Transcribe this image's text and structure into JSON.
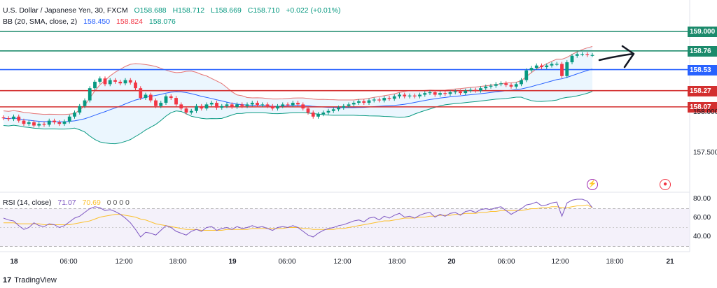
{
  "header": {
    "symbol": "U.S. Dollar / Japanese Yen, 30, FXCM",
    "open": "O158.688",
    "high": "H158.712",
    "low": "L158.669",
    "close": "C158.710",
    "change": "+0.022 (+0.01%)",
    "bb_label": "BB (20, SMA, close, 2)",
    "bb_basis": "158.450",
    "bb_upper": "158.824",
    "bb_lower": "158.076",
    "rsi_label": "RSI (14, close)",
    "rsi_value": "71.07",
    "rsi_ma": "70.69",
    "rsi_zeros": "0 0 0 0"
  },
  "colors": {
    "green_line": "#1b8a6b",
    "blue_line": "#2962ff",
    "red_line": "#d32f2f",
    "up_candle": "#089981",
    "down_candle": "#f23645",
    "bb_upper": "#e57373",
    "bb_basis": "#2962ff",
    "bb_lower": "#089981",
    "bb_fill": "#e3f2fd",
    "rsi_line": "#7e57c2",
    "rsi_ma": "#fbc02d",
    "rsi_band": "#ede7f6"
  },
  "chart_data": {
    "type": "candlestick",
    "price_axis_ticks": [
      "158.000",
      "157.500"
    ],
    "horizontal_levels": [
      {
        "label": "159.000",
        "value": 159.0,
        "color": "#1b8a6b"
      },
      {
        "label": "158.76",
        "value": 158.76,
        "color": "#1b8a6b"
      },
      {
        "label": "158.53",
        "value": 158.53,
        "color": "#2962ff"
      },
      {
        "label": "158.27",
        "value": 158.27,
        "color": "#d32f2f"
      },
      {
        "label": "158.07",
        "value": 158.07,
        "color": "#d32f2f"
      }
    ],
    "time_labels": [
      "18",
      "06:00",
      "12:00",
      "18:00",
      "19",
      "06:00",
      "12:00",
      "18:00",
      "20",
      "06:00",
      "12:00",
      "18:00",
      "21"
    ],
    "rsi_axis_ticks": [
      "80.00",
      "60.00",
      "40.00"
    ],
    "closes": [
      157.93,
      157.92,
      157.95,
      157.9,
      157.86,
      157.88,
      157.84,
      157.86,
      157.85,
      157.9,
      157.88,
      157.86,
      157.89,
      157.95,
      158.0,
      158.08,
      158.15,
      158.3,
      158.38,
      158.42,
      158.35,
      158.4,
      158.38,
      158.36,
      158.4,
      158.37,
      158.3,
      158.18,
      158.22,
      158.15,
      158.08,
      158.12,
      158.2,
      158.18,
      158.1,
      158.05,
      158.0,
      158.02,
      158.08,
      158.05,
      158.1,
      158.12,
      158.06,
      158.08,
      158.1,
      158.07,
      158.1,
      158.08,
      158.1,
      158.12,
      158.09,
      158.1,
      158.08,
      158.05,
      158.08,
      158.1,
      158.09,
      158.12,
      158.1,
      158.05,
      158.0,
      157.95,
      157.98,
      158.0,
      158.02,
      158.04,
      158.06,
      158.08,
      158.1,
      158.12,
      158.14,
      158.12,
      158.15,
      158.16,
      158.15,
      158.18,
      158.17,
      158.2,
      158.22,
      158.2,
      158.21,
      158.2,
      158.22,
      158.24,
      158.25,
      158.22,
      158.24,
      158.23,
      158.25,
      158.26,
      158.24,
      158.27,
      158.28,
      158.27,
      158.3,
      158.32,
      158.33,
      158.35,
      158.36,
      158.34,
      158.32,
      158.35,
      158.4,
      158.52,
      158.55,
      158.58,
      158.56,
      158.58,
      158.6,
      158.6,
      158.45,
      158.62,
      158.7,
      158.72,
      158.72,
      158.71,
      158.71
    ],
    "rsi": [
      60,
      58,
      57,
      52,
      48,
      50,
      55,
      52,
      51,
      54,
      53,
      50,
      52,
      56,
      60,
      62,
      66,
      70,
      72,
      71,
      68,
      69,
      67,
      64,
      60,
      55,
      48,
      40,
      45,
      44,
      42,
      47,
      52,
      50,
      46,
      44,
      42,
      46,
      48,
      46,
      50,
      51,
      47,
      49,
      50,
      48,
      51,
      49,
      50,
      52,
      50,
      51,
      49,
      47,
      50,
      51,
      50,
      52,
      50,
      46,
      42,
      40,
      44,
      47,
      49,
      50,
      52,
      53,
      55,
      57,
      58,
      56,
      60,
      61,
      58,
      62,
      60,
      63,
      65,
      61,
      62,
      60,
      63,
      65,
      66,
      61,
      64,
      62,
      65,
      66,
      63,
      67,
      68,
      66,
      69,
      70,
      69,
      71,
      72,
      68,
      64,
      67,
      70,
      74,
      75,
      77,
      73,
      74,
      76,
      77,
      62,
      76,
      79,
      80,
      80,
      78,
      71
    ],
    "rsi_ma": [
      55,
      55,
      55,
      54,
      54,
      54,
      54,
      54,
      53,
      53,
      53,
      53,
      53,
      53,
      54,
      55,
      56,
      57,
      59,
      61,
      62,
      63,
      64,
      64,
      63,
      62,
      61,
      59,
      58,
      56,
      54,
      53,
      52,
      51,
      50,
      49,
      48,
      48,
      48,
      47,
      47,
      47,
      47,
      47,
      48,
      48,
      48,
      48,
      48,
      49,
      49,
      49,
      49,
      49,
      49,
      49,
      50,
      50,
      50,
      49,
      49,
      48,
      48,
      48,
      48,
      48,
      49,
      49,
      50,
      51,
      52,
      53,
      54,
      55,
      56,
      57,
      57,
      58,
      59,
      60,
      60,
      60,
      61,
      61,
      62,
      62,
      63,
      63,
      63,
      64,
      64,
      65,
      65,
      65,
      66,
      66,
      67,
      67,
      68,
      68,
      68,
      68,
      68,
      69,
      70,
      70,
      71,
      71,
      72,
      72,
      71,
      71,
      72,
      73,
      73,
      74,
      71
    ]
  },
  "watermark": "TradingView",
  "logo_mark": "17"
}
